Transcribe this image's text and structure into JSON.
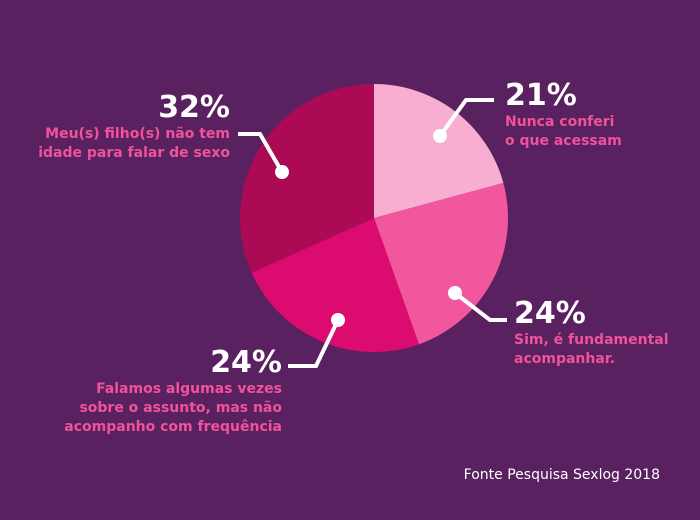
{
  "chart_data": {
    "type": "pie",
    "slices": [
      {
        "label": "Nunca conferi\no que acessam",
        "value": 21,
        "value_label": "21%",
        "color": "#f7aed0"
      },
      {
        "label": "Sim, é fundamental\nacompanhar.",
        "value": 24,
        "value_label": "24%",
        "color": "#f2579e"
      },
      {
        "label": "Falamos algumas vezes\nsobre o assunto, mas não\nacompanho com frequência",
        "value": 24,
        "value_label": "24%",
        "color": "#db0b6f"
      },
      {
        "label": "Meu(s) filho(s) não tem\nidade para falar de sexo",
        "value": 32,
        "value_label": "32%",
        "color": "#ad0a55"
      }
    ]
  },
  "source": "Fonte Pesquisa Sexlog 2018"
}
